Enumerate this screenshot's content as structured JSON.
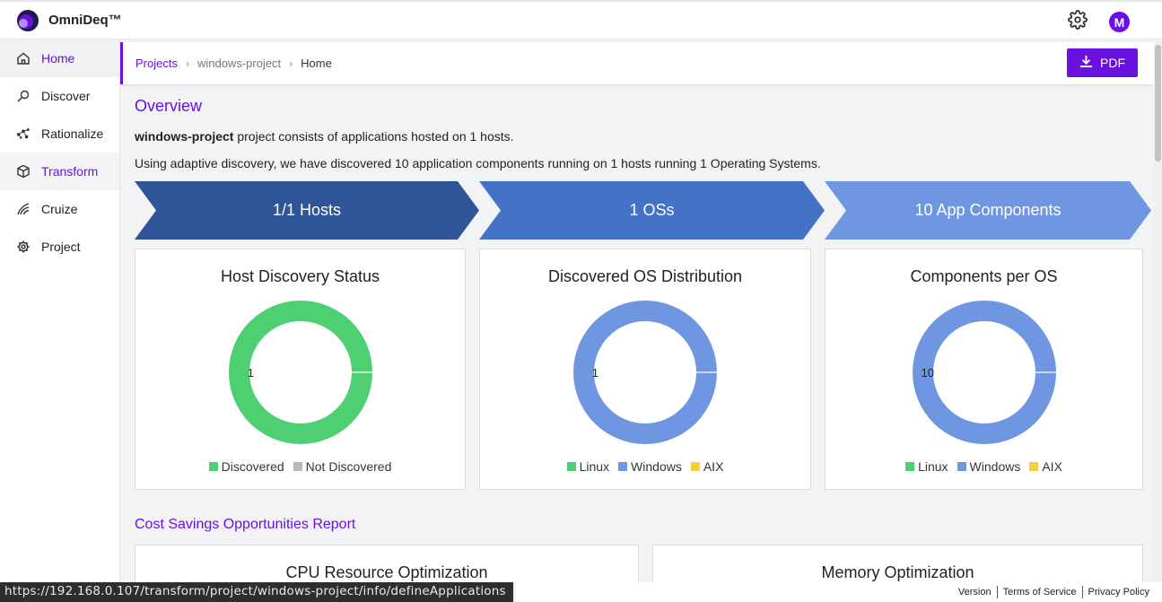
{
  "brand": {
    "name": "OmniDeq™"
  },
  "header": {
    "avatar_initial": "M",
    "settings_icon": "gear-icon"
  },
  "sidebar": {
    "items": [
      {
        "label": "Home",
        "icon": "home-icon",
        "state": "active"
      },
      {
        "label": "Discover",
        "icon": "discover-icon",
        "state": ""
      },
      {
        "label": "Rationalize",
        "icon": "rationalize-icon",
        "state": ""
      },
      {
        "label": "Transform",
        "icon": "cube-icon",
        "state": "highlight"
      },
      {
        "label": "Cruize",
        "icon": "cruize-icon",
        "state": ""
      },
      {
        "label": "Project",
        "icon": "gear-icon",
        "state": ""
      }
    ]
  },
  "breadcrumb": {
    "projects": "Projects",
    "project": "windows-project",
    "current": "Home"
  },
  "toolbar": {
    "pdf_label": "PDF"
  },
  "overview": {
    "title": "Overview",
    "project_name": "windows-project",
    "summary_rest": " project consists of applications hosted on 1 hosts.",
    "summary2": "Using adaptive discovery, we have discovered 10 application components running on 1 hosts running 1 Operating Systems."
  },
  "stats": [
    {
      "label": "1/1 Hosts",
      "color": "#2f5597"
    },
    {
      "label": "1 OSs",
      "color": "#4472c4"
    },
    {
      "label": "10 App Components",
      "color": "#6f96e0"
    }
  ],
  "chart_data": [
    {
      "type": "pie",
      "title": "Host Discovery Status",
      "categories": [
        "Discovered",
        "Not Discovered"
      ],
      "values": [
        1,
        0
      ],
      "colors": [
        "#4ecf72",
        "#b8b8b8"
      ],
      "data_label": "1"
    },
    {
      "type": "pie",
      "title": "Discovered OS Distribution",
      "categories": [
        "Linux",
        "Windows",
        "AIX"
      ],
      "values": [
        0,
        1,
        0
      ],
      "colors": [
        "#4ecf72",
        "#6f96e0",
        "#f4d03f"
      ],
      "data_label": "1"
    },
    {
      "type": "pie",
      "title": "Components per OS",
      "categories": [
        "Linux",
        "Windows",
        "AIX"
      ],
      "values": [
        0,
        10,
        0
      ],
      "colors": [
        "#4ecf72",
        "#6f96e0",
        "#f4d03f"
      ],
      "data_label": "10"
    }
  ],
  "cost": {
    "title": "Cost Savings Opportunities Report",
    "cards": [
      "CPU Resource Optimization",
      "Memory Optimization"
    ]
  },
  "status_url": "https://192.168.0.107/transform/project/windows-project/info/defineApplications",
  "footer": {
    "version": "Version",
    "terms": "Terms of Service",
    "privacy": "Privacy Policy"
  }
}
